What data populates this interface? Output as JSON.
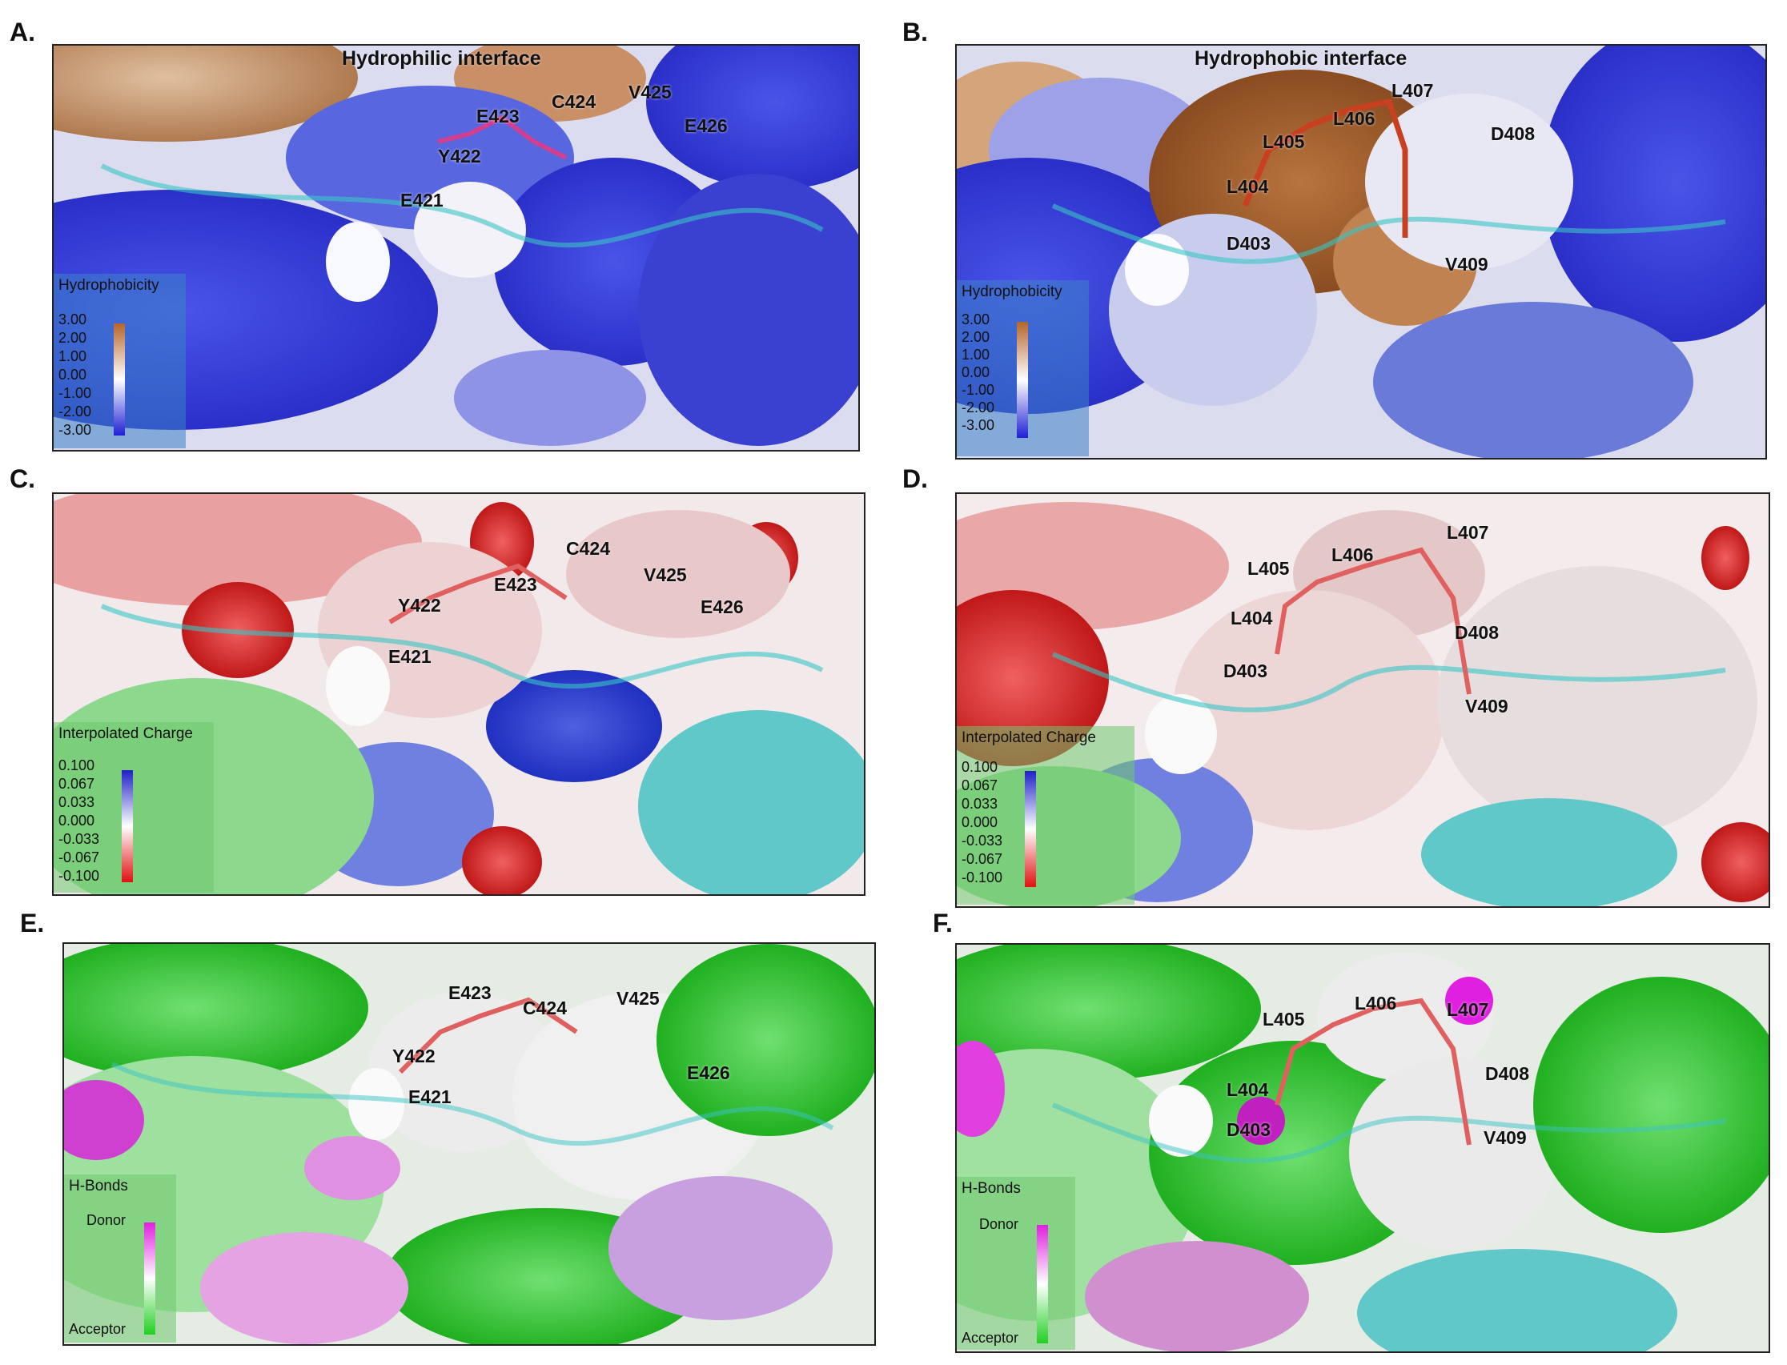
{
  "panels": [
    {
      "letter": "A.",
      "kind": "hydro",
      "title": "Hydrophilic interface",
      "residues": [
        "E421",
        "Y422",
        "E423",
        "C424",
        "V425",
        "E426"
      ],
      "legend": {
        "title": "Hydrophobicity",
        "ticks": [
          "3.00",
          "2.00",
          "1.00",
          "0.00",
          "-1.00",
          "-2.00",
          "-3.00"
        ],
        "colors": [
          "#b5652a",
          "#ffffff",
          "#1f1fd6"
        ]
      }
    },
    {
      "letter": "B.",
      "kind": "hydro",
      "title": "Hydrophobic interface",
      "residues": [
        "D403",
        "L404",
        "L405",
        "L406",
        "L407",
        "D408",
        "V409"
      ],
      "legend": {
        "title": "Hydrophobicity",
        "ticks": [
          "3.00",
          "2.00",
          "1.00",
          "0.00",
          "-1.00",
          "-2.00",
          "-3.00"
        ],
        "colors": [
          "#b5652a",
          "#ffffff",
          "#1f1fd6"
        ]
      }
    },
    {
      "letter": "C.",
      "kind": "charge",
      "title": "",
      "residues": [
        "E421",
        "Y422",
        "E423",
        "C424",
        "V425",
        "E426"
      ],
      "legend": {
        "title": "Interpolated Charge",
        "ticks": [
          "0.100",
          "0.067",
          "0.033",
          "0.000",
          "-0.033",
          "-0.067",
          "-0.100"
        ],
        "colors": [
          "#2020c8",
          "#ffffff",
          "#e01010"
        ]
      }
    },
    {
      "letter": "D.",
      "kind": "charge",
      "title": "",
      "residues": [
        "D403",
        "L404",
        "L405",
        "L406",
        "L407",
        "D408",
        "V409"
      ],
      "legend": {
        "title": "Interpolated Charge",
        "ticks": [
          "0.100",
          "0.067",
          "0.033",
          "0.000",
          "-0.033",
          "-0.067",
          "-0.100"
        ],
        "colors": [
          "#2020c8",
          "#ffffff",
          "#e01010"
        ]
      }
    },
    {
      "letter": "E.",
      "kind": "hbond",
      "title": "",
      "residues": [
        "E421",
        "Y422",
        "E423",
        "C424",
        "V425",
        "E426"
      ],
      "legend": {
        "title": "H-Bonds",
        "ticks": [
          "Donor",
          "Acceptor"
        ],
        "colors": [
          "#e020e0",
          "#ffffff",
          "#20d020"
        ]
      }
    },
    {
      "letter": "F.",
      "kind": "hbond",
      "title": "",
      "residues": [
        "D403",
        "L404",
        "L405",
        "L406",
        "L407",
        "D408",
        "V409"
      ],
      "legend": {
        "title": "H-Bonds",
        "ticks": [
          "Donor",
          "Acceptor"
        ],
        "colors": [
          "#e020e0",
          "#ffffff",
          "#20d020"
        ]
      }
    }
  ]
}
